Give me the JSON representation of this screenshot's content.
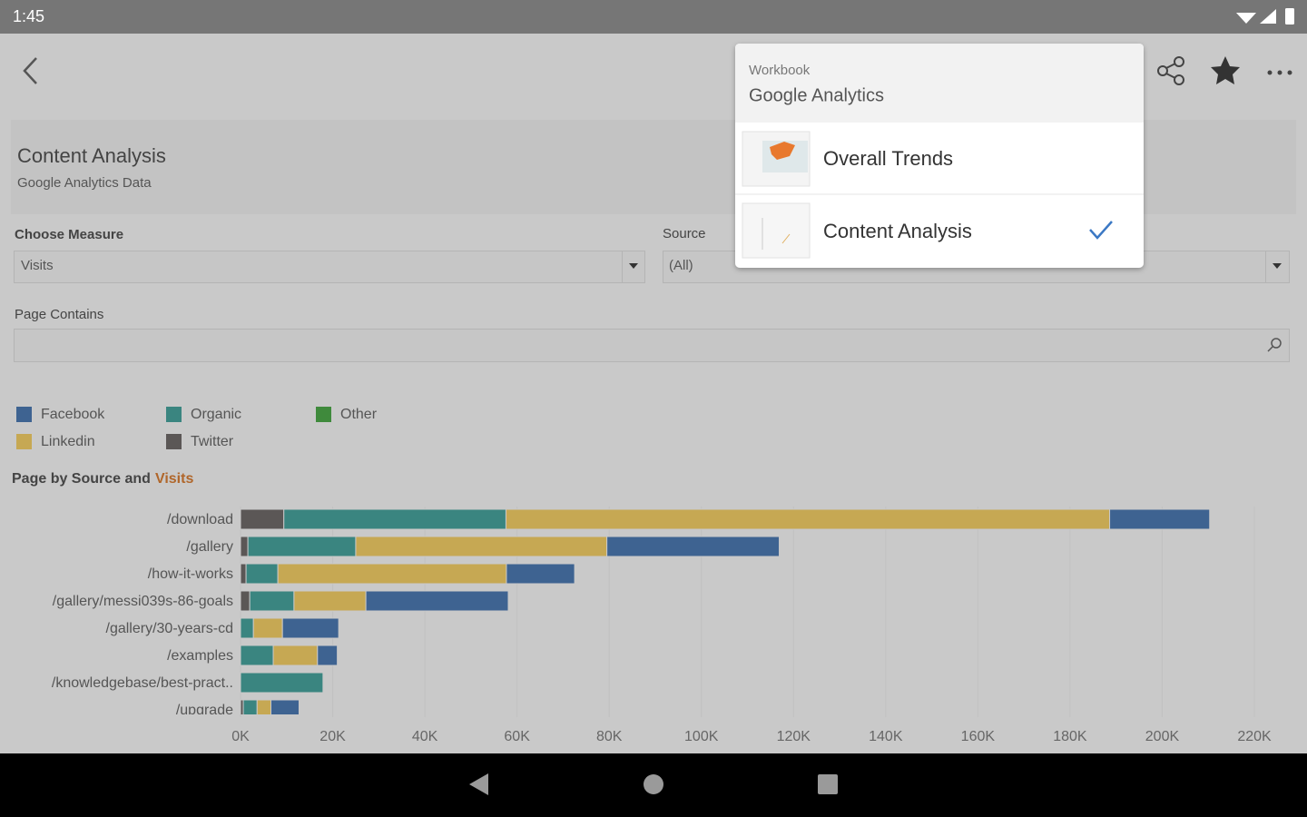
{
  "status_bar": {
    "time": "1:45"
  },
  "dashboard": {
    "title": "Content Analysis",
    "subtitle": "Google Analytics Data"
  },
  "filters": {
    "measure_label": "Choose Measure",
    "measure_value": "Visits",
    "source_label": "Source",
    "source_value": "(All)",
    "page_label": "Page Contains"
  },
  "popup": {
    "header_label": "Workbook",
    "workbook": "Google Analytics",
    "items": [
      "Overall Trends",
      "Content Analysis"
    ]
  },
  "chart_data": {
    "type": "stacked-bar-horizontal",
    "title": "Page by Source and",
    "title_measure": "Visits",
    "categories": [
      "/download",
      "/gallery",
      "/how-it-works",
      "/gallery/messi039s-86-goals",
      "/gallery/30-years-cd",
      "/examples",
      "/knowledgebase/best-pract..",
      "/upgrade"
    ],
    "series": [
      {
        "name": "Twitter",
        "color": "#5b5756",
        "values": [
          9400,
          1600,
          1200,
          2000,
          0,
          0,
          0,
          600
        ]
      },
      {
        "name": "Organic",
        "color": "#3a8580",
        "values": [
          48200,
          23400,
          6900,
          9600,
          2800,
          7100,
          17900,
          3000
        ]
      },
      {
        "name": "Linkedin",
        "color": "#c6a853",
        "values": [
          131000,
          54500,
          49600,
          15600,
          6300,
          9600,
          0,
          3000
        ]
      },
      {
        "name": "Facebook",
        "color": "#3e6391",
        "values": [
          21700,
          37400,
          14800,
          30900,
          12200,
          4300,
          0,
          6100
        ]
      },
      {
        "name": "Other",
        "color": "#3f8a3c",
        "values": [
          0,
          0,
          0,
          0,
          0,
          0,
          0,
          0
        ]
      }
    ],
    "xlim": [
      0,
      220000
    ],
    "xticks": [
      {
        "value": 0,
        "label": "0K"
      },
      {
        "value": 20000,
        "label": "20K"
      },
      {
        "value": 40000,
        "label": "40K"
      },
      {
        "value": 60000,
        "label": "60K"
      },
      {
        "value": 80000,
        "label": "80K"
      },
      {
        "value": 100000,
        "label": "100K"
      },
      {
        "value": 120000,
        "label": "120K"
      },
      {
        "value": 140000,
        "label": "140K"
      },
      {
        "value": 160000,
        "label": "160K"
      },
      {
        "value": 180000,
        "label": "180K"
      },
      {
        "value": 200000,
        "label": "200K"
      },
      {
        "value": 220000,
        "label": "220K"
      }
    ],
    "grid": true
  }
}
